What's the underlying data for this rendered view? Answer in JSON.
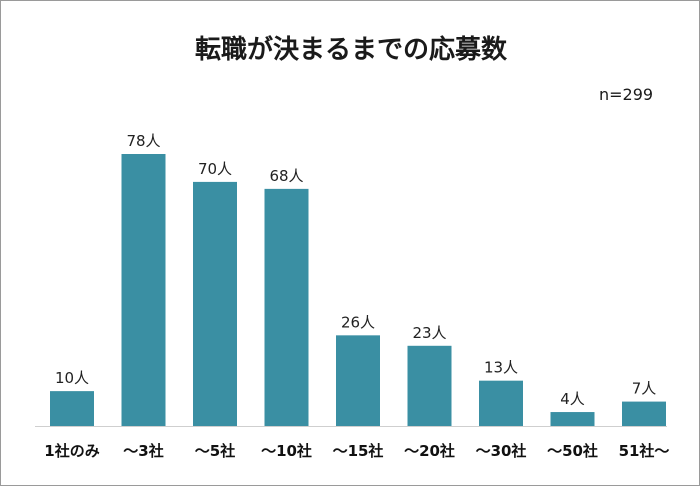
{
  "chart_data": {
    "type": "bar",
    "title": "転職が決まるまでの応募数",
    "note": "n=299",
    "unit": "人",
    "categories": [
      "1社のみ",
      "～3社",
      "～5社",
      "～10社",
      "～15社",
      "～20社",
      "～30社",
      "～50社",
      "51社～"
    ],
    "values": [
      10,
      78,
      70,
      68,
      26,
      23,
      13,
      4,
      7
    ],
    "data_labels": [
      "10人",
      "78人",
      "70人",
      "68人",
      "26人",
      "23人",
      "13人",
      "4人",
      "7人"
    ],
    "xlabel": "",
    "ylabel": "",
    "ylim": [
      0,
      78
    ],
    "grid": false,
    "bar_color": "#3a8fa3"
  }
}
